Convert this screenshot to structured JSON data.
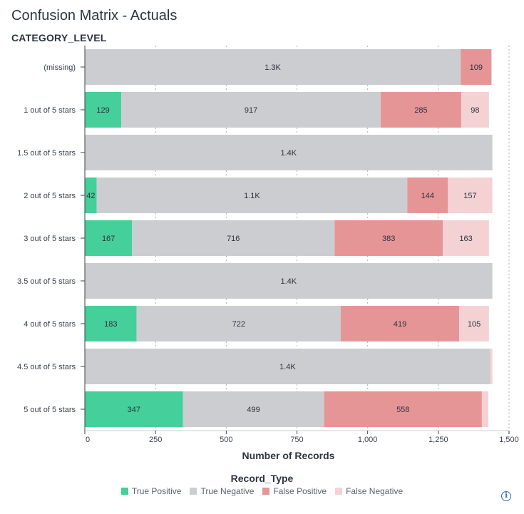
{
  "header": {
    "title": "Confusion Matrix - Actuals",
    "y_axis_label": "CATEGORY_LEVEL"
  },
  "legend": {
    "title": "Record_Type",
    "items": [
      {
        "label": "True Positive",
        "color": "#45cf9a"
      },
      {
        "label": "True Negative",
        "color": "#cccdd0"
      },
      {
        "label": "False Positive",
        "color": "#e69597"
      },
      {
        "label": "False Negative",
        "color": "#f4d2d4"
      }
    ]
  },
  "icons": {
    "info": "info-icon"
  },
  "chart_data": {
    "type": "bar",
    "orientation": "horizontal",
    "stacked": true,
    "xlabel": "Number of Records",
    "ylabel": "CATEGORY_LEVEL",
    "xlim": [
      0,
      1500
    ],
    "x_ticks": [
      "0",
      "250",
      "500",
      "750",
      "1,000",
      "1,250",
      "1,500"
    ],
    "x_tick_values": [
      0,
      250,
      500,
      750,
      1000,
      1250,
      1500
    ],
    "grid": true,
    "legend_position": "bottom",
    "categories": [
      "(missing)",
      "1 out of 5 stars",
      "1.5 out of 5 stars",
      "2 out of 5 stars",
      "3 out of 5 stars",
      "3.5 out of 5 stars",
      "4 out of 5 stars",
      "4.5 out of 5 stars",
      "5 out of 5 stars"
    ],
    "series": [
      {
        "name": "True Positive",
        "color": "#45cf9a",
        "values": [
          0,
          129,
          0,
          42,
          167,
          0,
          183,
          0,
          347
        ],
        "labels": [
          "",
          "129",
          "",
          "42",
          "167",
          "",
          "183",
          "",
          "347"
        ]
      },
      {
        "name": "True Negative",
        "color": "#cccdd0",
        "values": [
          1329,
          917,
          1441,
          1098,
          716,
          1441,
          722,
          1434,
          499
        ],
        "labels": [
          "1.3K",
          "917",
          "1.4K",
          "1.1K",
          "716",
          "1.4K",
          "722",
          "1.4K",
          "499"
        ]
      },
      {
        "name": "False Positive",
        "color": "#e69597",
        "values": [
          109,
          285,
          0,
          144,
          383,
          0,
          419,
          0,
          558
        ],
        "labels": [
          "109",
          "285",
          "",
          "144",
          "383",
          "",
          "419",
          "",
          "558"
        ]
      },
      {
        "name": "False Negative",
        "color": "#f4d2d4",
        "values": [
          0,
          98,
          0,
          157,
          163,
          0,
          105,
          7,
          23
        ],
        "labels": [
          "",
          "98",
          "",
          "157",
          "163",
          "",
          "105",
          "",
          ""
        ]
      }
    ]
  }
}
